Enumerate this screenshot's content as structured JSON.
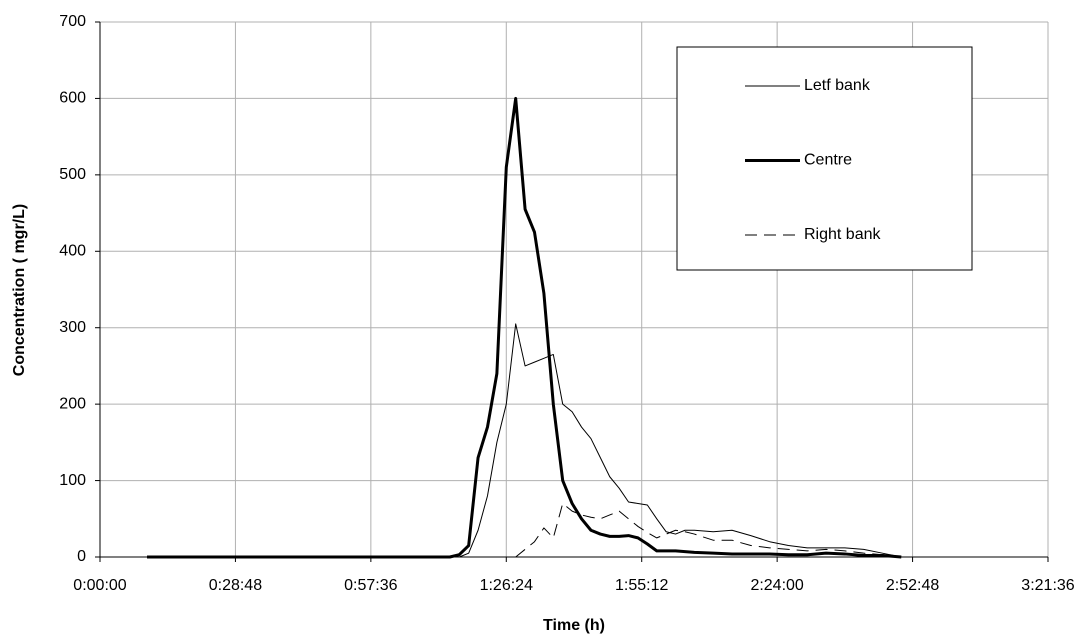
{
  "chart_data": {
    "type": "line",
    "x_label": "Time (h)",
    "y_label": "Concentration ( mgr/L)",
    "x": [
      600,
      4224,
      4344,
      4464,
      4584,
      4704,
      4824,
      4944,
      5064,
      5184,
      5304,
      5424,
      5544,
      5664,
      5784,
      5904,
      6024,
      6144,
      6264,
      6384,
      6504,
      6624,
      6744,
      6864,
      6984,
      7104,
      7224,
      7344,
      7464,
      7584,
      7824,
      8064,
      8304,
      8544,
      8784,
      9024,
      9264,
      9504,
      9744,
      9984,
      10224
    ],
    "series": [
      {
        "name": "Letf bank",
        "color": "#000000",
        "line_width": 1,
        "dash": false,
        "values": [
          0,
          0,
          0,
          0,
          0,
          5,
          35,
          80,
          150,
          200,
          305,
          250,
          255,
          260,
          265,
          200,
          190,
          170,
          155,
          130,
          105,
          90,
          72,
          70,
          68,
          50,
          33,
          30,
          35,
          35,
          33,
          35,
          28,
          20,
          15,
          12,
          12,
          12,
          10,
          5,
          0
        ]
      },
      {
        "name": "Centre",
        "color": "#000000",
        "line_width": 3,
        "dash": false,
        "values": [
          0,
          0,
          0,
          0,
          3,
          15,
          130,
          170,
          240,
          510,
          600,
          455,
          425,
          345,
          200,
          100,
          70,
          50,
          35,
          30,
          27,
          27,
          28,
          25,
          17,
          8,
          8,
          8,
          7,
          6,
          5,
          4,
          4,
          4,
          3,
          3,
          5,
          4,
          2,
          2,
          0
        ]
      },
      {
        "name": "Right bank",
        "color": "#000000",
        "line_width": 1,
        "dash": true,
        "values": [
          null,
          null,
          null,
          null,
          null,
          null,
          null,
          null,
          null,
          null,
          0,
          10,
          20,
          38,
          25,
          70,
          60,
          55,
          52,
          50,
          55,
          60,
          50,
          40,
          32,
          25,
          30,
          35,
          33,
          30,
          22,
          22,
          15,
          12,
          10,
          8,
          10,
          8,
          5,
          3,
          0
        ]
      }
    ],
    "xlim": [
      0,
      12096
    ],
    "xticks": [
      {
        "value": 0,
        "label": "0:00:00"
      },
      {
        "value": 1728,
        "label": "0:28:48"
      },
      {
        "value": 3456,
        "label": "0:57:36"
      },
      {
        "value": 5184,
        "label": "1:26:24"
      },
      {
        "value": 6912,
        "label": "1:55:12"
      },
      {
        "value": 8640,
        "label": "2:24:00"
      },
      {
        "value": 10368,
        "label": "2:52:48"
      },
      {
        "value": 12096,
        "label": "3:21:36"
      }
    ],
    "ylim": [
      0,
      700
    ],
    "yticks": [
      0,
      100,
      200,
      300,
      400,
      500,
      600,
      700
    ],
    "grid": true,
    "legend": "top-right"
  }
}
